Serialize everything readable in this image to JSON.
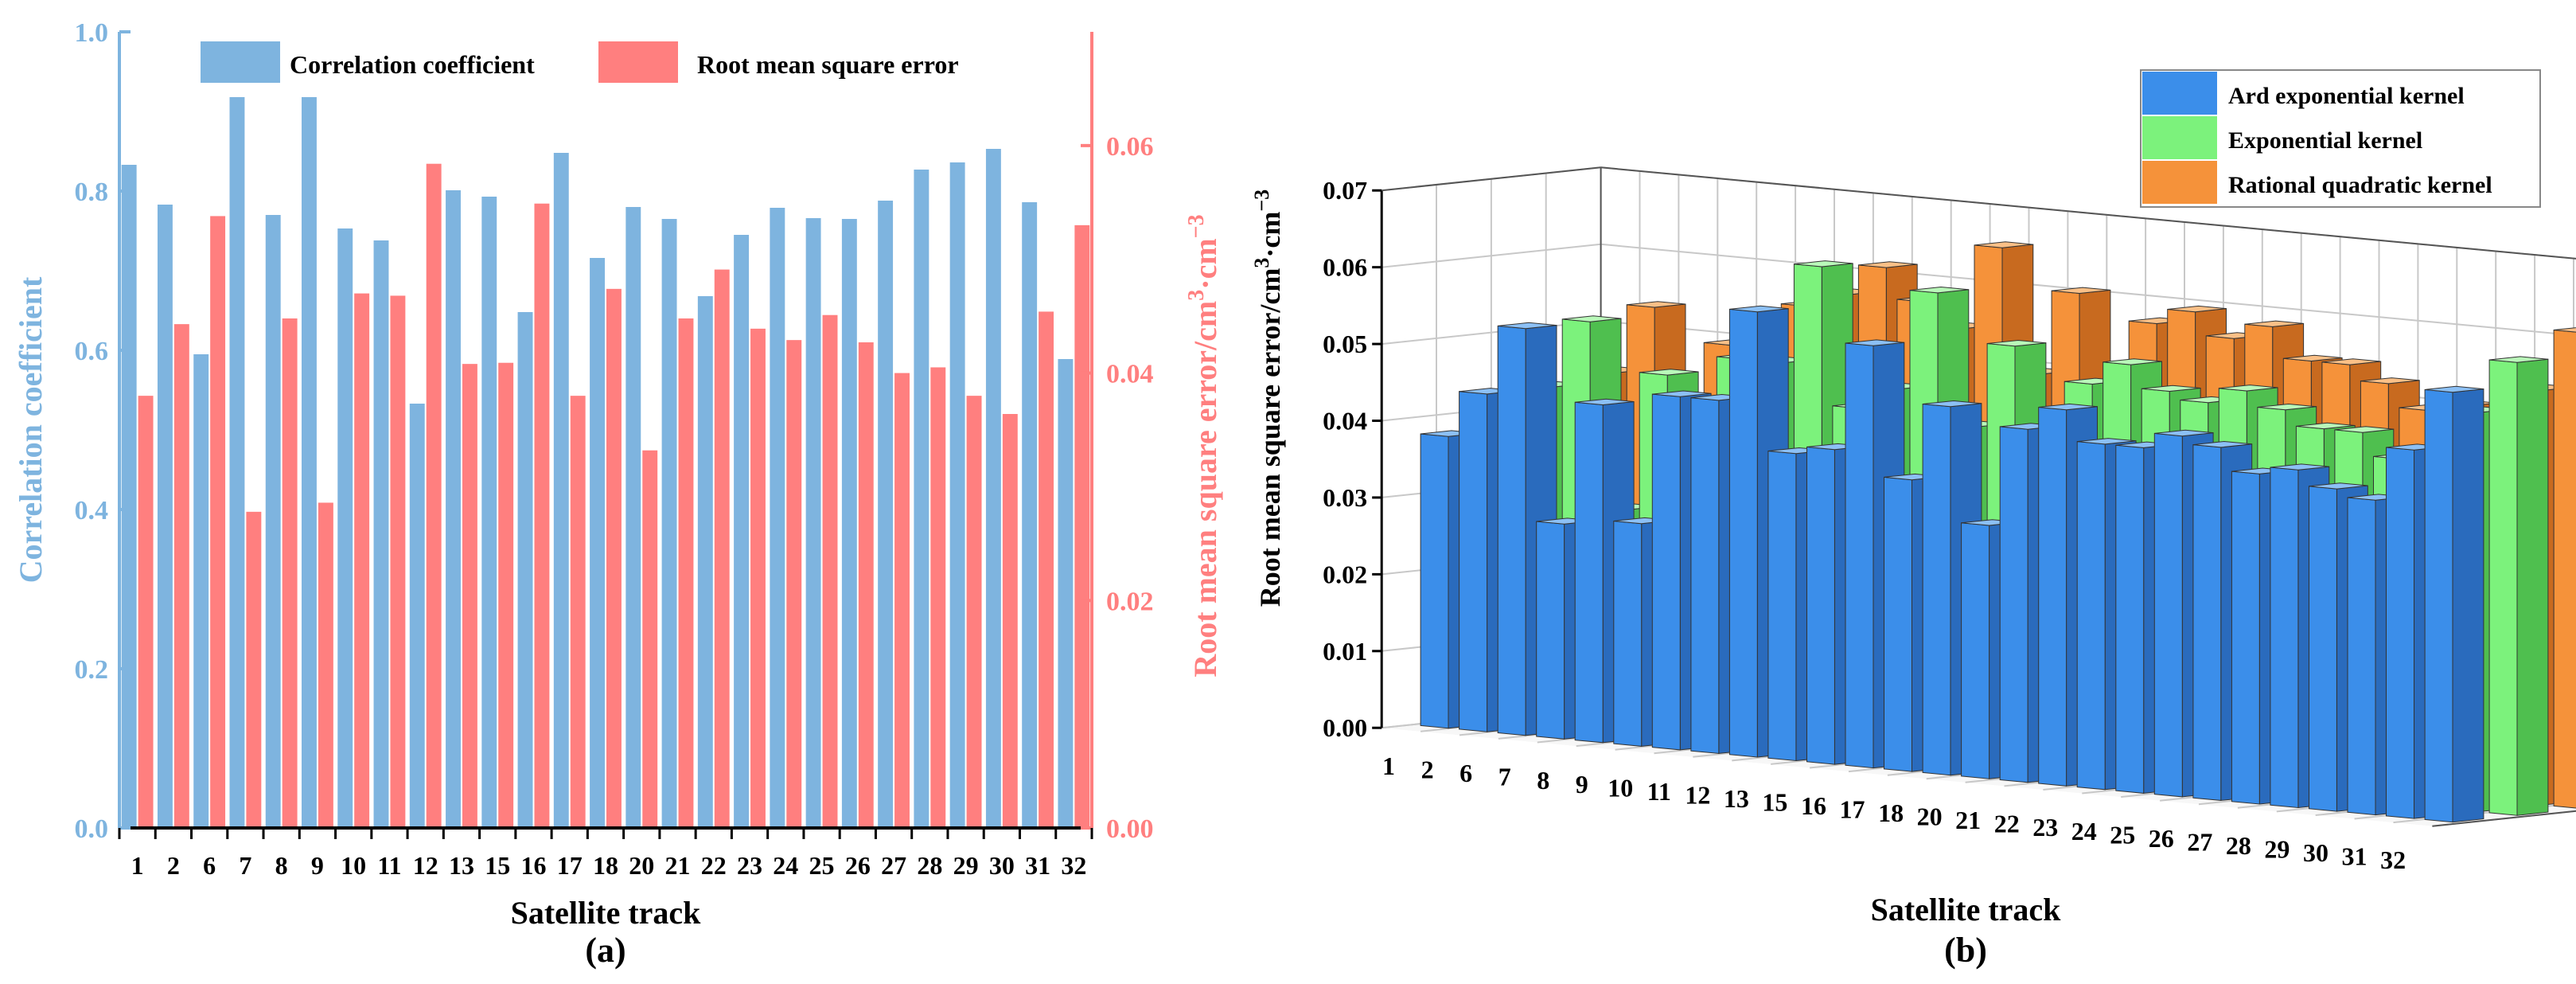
{
  "colors": {
    "corr": "#7eb4df",
    "rmse": "#ff7f7f",
    "ard": "#3b8eea",
    "ard_side": "#2a6bbd",
    "ard_top": "#8cc0f5",
    "exp": "#7cf27c",
    "exp_side": "#4fbf4f",
    "exp_top": "#b9f8b9",
    "rq": "#f5923a",
    "rq_side": "#c86a1f",
    "rq_top": "#fbc087",
    "axis": "#000000",
    "grid": "#c8c8c8"
  },
  "chart_data": [
    {
      "type": "bar",
      "panel_label": "(a)",
      "xlabel": "Satellite track",
      "ylabel_left": "Correlation coefficient",
      "ylabel_right_main": "Root mean square error/cm",
      "ylabel_right_sup1": "3",
      "ylabel_right_mid": "·cm",
      "ylabel_right_sup2": "−3",
      "ylim_left": [
        0.0,
        1.0
      ],
      "ylim_right": [
        0.0,
        0.07
      ],
      "yticks_left": [
        "0.0",
        "0.2",
        "0.4",
        "0.6",
        "0.8",
        "1.0"
      ],
      "yticks_right": [
        "0.00",
        "0.02",
        "0.04",
        "0.06"
      ],
      "categories": [
        "1",
        "2",
        "6",
        "7",
        "8",
        "9",
        "10",
        "11",
        "12",
        "13",
        "15",
        "16",
        "17",
        "18",
        "20",
        "21",
        "22",
        "23",
        "24",
        "25",
        "26",
        "27",
        "28",
        "29",
        "30",
        "31",
        "32"
      ],
      "series": [
        {
          "name": "Correlation coefficient",
          "axis": "left",
          "values": [
            0.833,
            0.783,
            0.595,
            0.918,
            0.77,
            0.918,
            0.753,
            0.738,
            0.533,
            0.801,
            0.793,
            0.648,
            0.848,
            0.716,
            0.78,
            0.765,
            0.668,
            0.745,
            0.779,
            0.766,
            0.765,
            0.788,
            0.827,
            0.836,
            0.853,
            0.786,
            0.589
          ]
        },
        {
          "name": "Root mean square error",
          "axis": "right",
          "values": [
            0.038,
            0.0443,
            0.0538,
            0.0278,
            0.0448,
            0.0286,
            0.047,
            0.0468,
            0.0584,
            0.0408,
            0.0409,
            0.0549,
            0.038,
            0.0474,
            0.0332,
            0.0448,
            0.0491,
            0.0439,
            0.0429,
            0.0451,
            0.0427,
            0.04,
            0.0405,
            0.038,
            0.0364,
            0.0454,
            0.053
          ]
        }
      ]
    },
    {
      "type": "bar",
      "subtype": "3d",
      "panel_label": "(b)",
      "xlabel": "Satellite track",
      "ylabel_main": "Root mean square error/cm",
      "ylabel_sup1": "3",
      "ylabel_mid": "·cm",
      "ylabel_sup2": "−3",
      "ylim": [
        0.0,
        0.07
      ],
      "yticks": [
        "0.00",
        "0.01",
        "0.02",
        "0.03",
        "0.04",
        "0.05",
        "0.06",
        "0.07"
      ],
      "legend_position": "top-right",
      "categories": [
        "1",
        "2",
        "6",
        "7",
        "8",
        "9",
        "10",
        "11",
        "12",
        "13",
        "15",
        "16",
        "17",
        "18",
        "20",
        "21",
        "22",
        "23",
        "24",
        "25",
        "26",
        "27",
        "28",
        "29",
        "30",
        "31",
        "32"
      ],
      "series": [
        {
          "name": "Ard exponential kernel",
          "values": [
            0.038,
            0.044,
            0.053,
            0.028,
            0.044,
            0.029,
            0.046,
            0.046,
            0.058,
            0.04,
            0.041,
            0.055,
            0.038,
            0.048,
            0.033,
            0.046,
            0.049,
            0.045,
            0.045,
            0.047,
            0.046,
            0.043,
            0.044,
            0.042,
            0.041,
            0.048,
            0.056
          ]
        },
        {
          "name": "Exponential kernel",
          "values": [
            0.039,
            0.044,
            0.053,
            0.029,
            0.047,
            0.03,
            0.05,
            0.05,
            0.063,
            0.045,
            0.048,
            0.061,
            0.044,
            0.055,
            0.039,
            0.051,
            0.054,
            0.051,
            0.05,
            0.052,
            0.05,
            0.048,
            0.048,
            0.045,
            0.044,
            0.052,
            0.059
          ]
        },
        {
          "name": "Rational quadratic kernel",
          "values": [
            0.04,
            0.045,
            0.054,
            0.038,
            0.05,
            0.047,
            0.056,
            0.058,
            0.062,
            0.058,
            0.055,
            0.066,
            0.05,
            0.061,
            0.044,
            0.058,
            0.06,
            0.057,
            0.059,
            0.055,
            0.055,
            0.053,
            0.05,
            0.051,
            0.048,
            0.054,
            0.062
          ]
        }
      ]
    }
  ]
}
